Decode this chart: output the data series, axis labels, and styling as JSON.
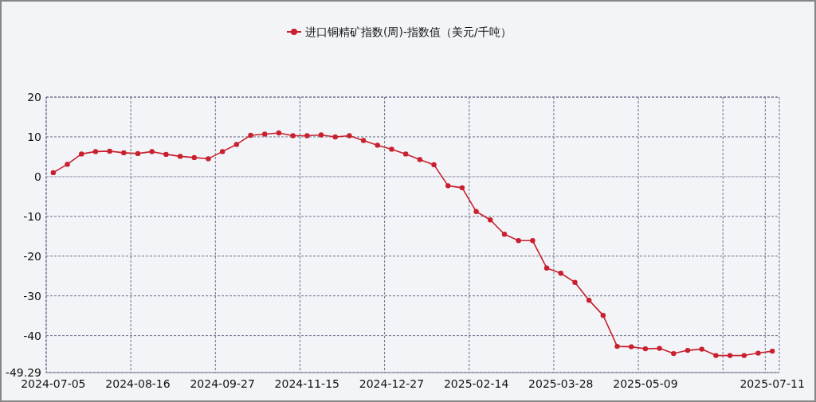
{
  "chart_data": {
    "type": "line",
    "categories": [
      "2024-07-05",
      null,
      null,
      null,
      null,
      null,
      "2024-08-16",
      null,
      null,
      null,
      null,
      null,
      "2024-09-27",
      null,
      null,
      null,
      null,
      null,
      "2024-11-15",
      null,
      null,
      null,
      null,
      null,
      "2024-12-27",
      null,
      null,
      null,
      null,
      null,
      "2025-02-14",
      null,
      null,
      null,
      null,
      null,
      "2025-03-28",
      null,
      null,
      null,
      null,
      null,
      "2025-05-09",
      null,
      null,
      null,
      null,
      null,
      null,
      null,
      null,
      "2025-07-11"
    ],
    "series": [
      {
        "name": "进口铜精矿指数(周)-指数值（美元/千吨）",
        "color": "#c8202f",
        "values": [
          1.0,
          3.1,
          5.7,
          6.3,
          6.4,
          6.0,
          5.8,
          6.3,
          5.6,
          5.1,
          4.8,
          4.5,
          6.3,
          8.1,
          10.4,
          10.7,
          11.0,
          10.3,
          10.3,
          10.5,
          10.0,
          10.3,
          9.1,
          7.9,
          6.9,
          5.7,
          4.3,
          3.0,
          -2.3,
          -2.8,
          -8.8,
          -10.9,
          -14.5,
          -16.1,
          -16.1,
          -23.0,
          -24.3,
          -26.6,
          -31.1,
          -34.9,
          -42.7,
          -42.8,
          -43.3,
          -43.2,
          -44.5,
          -43.7,
          -43.4,
          -45.0,
          -45.0,
          -45.0,
          -44.4,
          -43.9
        ]
      }
    ],
    "ylim": [
      -49.29,
      20
    ],
    "yticks": [
      -49.29,
      -40,
      -30,
      -20,
      -10,
      0,
      10,
      20
    ],
    "grid": true,
    "legend": "top",
    "marker": "circle",
    "line_style": "solid"
  }
}
